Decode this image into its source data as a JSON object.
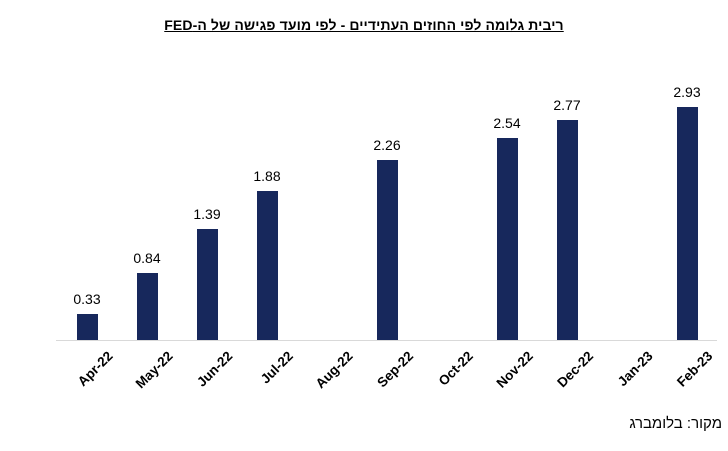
{
  "title": "ריבית גלומה לפי החוזים העתידיים - לפי מועד פגישה של ה-FED",
  "source": "מקור: בלומברג",
  "colors": {
    "bar": "#17285c",
    "axis_line": "#d9d9d9",
    "text": "#000000",
    "background": "#ffffff"
  },
  "chart_data": {
    "type": "bar",
    "title": "ריבית גלומה לפי החוזים העתידיים - לפי מועד פגישה של ה-FED",
    "categories": [
      "Apr-22",
      "May-22",
      "Jun-22",
      "Jul-22",
      "Aug-22",
      "Sep-22",
      "Oct-22",
      "Nov-22",
      "Dec-22",
      "Jan-23",
      "Feb-23"
    ],
    "values": [
      0.33,
      0.84,
      1.39,
      1.88,
      null,
      2.26,
      null,
      2.54,
      2.77,
      null,
      2.93
    ],
    "data_labels": [
      "0.33",
      "0.84",
      "1.39",
      "1.88",
      "",
      "2.26",
      "",
      "2.54",
      "2.77",
      "",
      "2.93"
    ],
    "xlabel": "",
    "ylabel": "",
    "ylim": [
      0,
      3.2
    ],
    "grid": false,
    "legend": null,
    "y_axis_visible": false,
    "bar_color": "#17285c",
    "source_note": "מקור: בלומברג"
  }
}
